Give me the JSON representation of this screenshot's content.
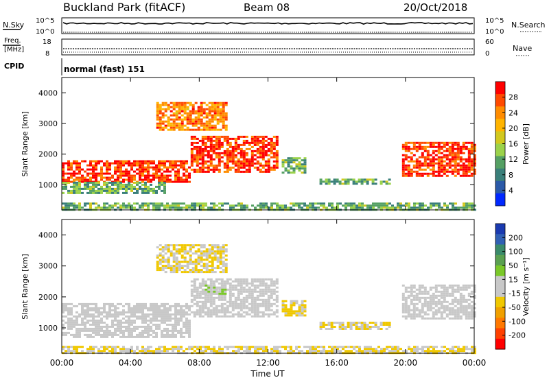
{
  "header": {
    "station": "Buckland Park (fitACF)",
    "beam": "Beam 08",
    "date": "20/Oct/2018"
  },
  "top_panels": {
    "nsky": {
      "label": "N.Sky",
      "ticks": [
        "10^5",
        "10^0"
      ]
    },
    "nsearch": {
      "label": "N.Search",
      "ticks": [
        "10^5",
        "10^0"
      ]
    },
    "freq": {
      "label_line1": "Freq.",
      "label_line2": "[MHz]",
      "ticks": [
        "18",
        "8"
      ]
    },
    "nave": {
      "label": "Nave",
      "ticks": [
        "60",
        "0"
      ]
    },
    "cpid": {
      "label": "CPID",
      "mode_text": "normal (fast) 151"
    }
  },
  "chart_data": [
    {
      "type": "heatmap",
      "name": "power",
      "ylabel": "Slant Range [km]",
      "yticks": [
        "4000",
        "3000",
        "2000",
        "1000"
      ],
      "ylim": [
        180,
        4500
      ],
      "colorbar": {
        "label": "Power [dB]",
        "ticks": [
          "28",
          "24",
          "20",
          "16",
          "12",
          "8",
          "4"
        ],
        "colors": [
          "#ff0000",
          "#ff4a00",
          "#ff8c00",
          "#ffb400",
          "#d2c81e",
          "#9bd24a",
          "#55a064",
          "#3a7f7a",
          "#2b5aa8",
          "#0028ff"
        ]
      },
      "regions": [
        {
          "t0": 0.0,
          "t1": 7.5,
          "r0": 1100,
          "r1": 1800,
          "value": 28
        },
        {
          "t0": 7.5,
          "t1": 12.6,
          "r0": 1400,
          "r1": 2600,
          "value": 28
        },
        {
          "t0": 5.5,
          "t1": 9.5,
          "r0": 2800,
          "r1": 3700,
          "value": 24
        },
        {
          "t0": 0.0,
          "t1": 6.0,
          "r0": 700,
          "r1": 1100,
          "value": 12
        },
        {
          "t0": 12.8,
          "t1": 14.2,
          "r0": 1400,
          "r1": 1900,
          "value": 12
        },
        {
          "t0": 15.0,
          "t1": 19.0,
          "r0": 1000,
          "r1": 1200,
          "value": 12
        },
        {
          "t0": 19.8,
          "t1": 24.0,
          "r0": 1300,
          "r1": 2400,
          "value": 28
        },
        {
          "t0": 0.0,
          "t1": 24.0,
          "r0": 200,
          "r1": 420,
          "value": 12
        }
      ]
    },
    {
      "type": "heatmap",
      "name": "velocity",
      "ylabel": "Slant Range [km]",
      "yticks": [
        "4000",
        "3000",
        "2000",
        "1000"
      ],
      "ylim": [
        180,
        4500
      ],
      "colorbar": {
        "label": "Velocity [m s⁻¹]",
        "ticks": [
          "200",
          "100",
          "50",
          "15",
          "-15",
          "-50",
          "-100",
          "-200"
        ],
        "colors": [
          "#1a3ab0",
          "#3060b4",
          "#3a8a6a",
          "#5aa050",
          "#7ac828",
          "#c8c8c8",
          "#c8c8c8",
          "#f0c800",
          "#f0a000",
          "#ff7800",
          "#ff4000",
          "#ff0000"
        ]
      },
      "regions": [
        {
          "t0": 0.0,
          "t1": 7.5,
          "r0": 700,
          "r1": 1800,
          "value": 0
        },
        {
          "t0": 7.5,
          "t1": 12.6,
          "r0": 1400,
          "r1": 2600,
          "value": 0
        },
        {
          "t0": 5.5,
          "t1": 9.5,
          "r0": 2800,
          "r1": 3700,
          "value": -40
        },
        {
          "t0": 8.0,
          "t1": 9.5,
          "r0": 2100,
          "r1": 2400,
          "value": 30
        },
        {
          "t0": 12.8,
          "t1": 14.2,
          "r0": 1400,
          "r1": 1900,
          "value": -40
        },
        {
          "t0": 15.0,
          "t1": 19.0,
          "r0": 1000,
          "r1": 1200,
          "value": -40
        },
        {
          "t0": 19.8,
          "t1": 24.0,
          "r0": 1300,
          "r1": 2400,
          "value": 0
        },
        {
          "t0": 0.0,
          "t1": 24.0,
          "r0": 200,
          "r1": 420,
          "value": -40
        }
      ]
    }
  ],
  "xaxis": {
    "label": "Time UT",
    "ticks": [
      "00:00",
      "04:00",
      "08:00",
      "12:00",
      "16:00",
      "20:00",
      "00:00"
    ]
  }
}
